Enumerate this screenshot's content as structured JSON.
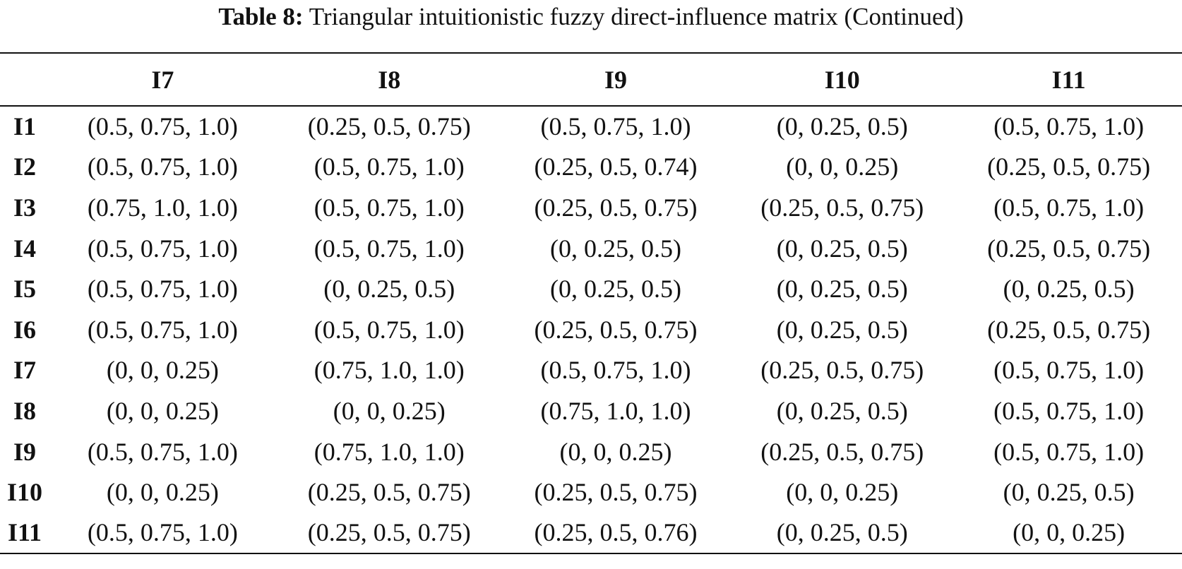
{
  "caption": {
    "label": "Table 8:",
    "text": "Triangular intuitionistic fuzzy direct-influence matrix (Continued)"
  },
  "table": {
    "columns": [
      "",
      "I7",
      "I8",
      "I9",
      "I10",
      "I11"
    ],
    "rows": [
      {
        "label": "I1",
        "cells": [
          "(0.5, 0.75, 1.0)",
          "(0.25, 0.5, 0.75)",
          "(0.5, 0.75, 1.0)",
          "(0, 0.25, 0.5)",
          "(0.5, 0.75, 1.0)"
        ]
      },
      {
        "label": "I2",
        "cells": [
          "(0.5, 0.75, 1.0)",
          "(0.5, 0.75, 1.0)",
          "(0.25, 0.5, 0.74)",
          "(0, 0, 0.25)",
          "(0.25, 0.5, 0.75)"
        ]
      },
      {
        "label": "I3",
        "cells": [
          "(0.75, 1.0, 1.0)",
          "(0.5, 0.75, 1.0)",
          "(0.25, 0.5, 0.75)",
          "(0.25, 0.5, 0.75)",
          "(0.5, 0.75, 1.0)"
        ]
      },
      {
        "label": "I4",
        "cells": [
          "(0.5, 0.75, 1.0)",
          "(0.5, 0.75, 1.0)",
          "(0, 0.25, 0.5)",
          "(0, 0.25, 0.5)",
          "(0.25, 0.5, 0.75)"
        ]
      },
      {
        "label": "I5",
        "cells": [
          "(0.5, 0.75, 1.0)",
          "(0, 0.25, 0.5)",
          "(0, 0.25, 0.5)",
          "(0, 0.25, 0.5)",
          "(0, 0.25, 0.5)"
        ]
      },
      {
        "label": "I6",
        "cells": [
          "(0.5, 0.75, 1.0)",
          "(0.5, 0.75, 1.0)",
          "(0.25, 0.5, 0.75)",
          "(0, 0.25, 0.5)",
          "(0.25, 0.5, 0.75)"
        ]
      },
      {
        "label": "I7",
        "cells": [
          "(0, 0, 0.25)",
          "(0.75, 1.0, 1.0)",
          "(0.5, 0.75, 1.0)",
          "(0.25, 0.5, 0.75)",
          "(0.5, 0.75, 1.0)"
        ]
      },
      {
        "label": "I8",
        "cells": [
          "(0, 0, 0.25)",
          "(0, 0, 0.25)",
          "(0.75, 1.0, 1.0)",
          "(0, 0.25, 0.5)",
          "(0.5, 0.75, 1.0)"
        ]
      },
      {
        "label": "I9",
        "cells": [
          "(0.5, 0.75, 1.0)",
          "(0.75, 1.0, 1.0)",
          "(0, 0, 0.25)",
          "(0.25, 0.5, 0.75)",
          "(0.5, 0.75, 1.0)"
        ]
      },
      {
        "label": "I10",
        "cells": [
          "(0, 0, 0.25)",
          "(0.25, 0.5, 0.75)",
          "(0.25, 0.5, 0.75)",
          "(0, 0, 0.25)",
          "(0, 0.25, 0.5)"
        ]
      },
      {
        "label": "I11",
        "cells": [
          "(0.5, 0.75, 1.0)",
          "(0.25, 0.5, 0.75)",
          "(0.25, 0.5, 0.76)",
          "(0, 0.25, 0.5)",
          "(0, 0, 0.25)"
        ]
      }
    ]
  }
}
